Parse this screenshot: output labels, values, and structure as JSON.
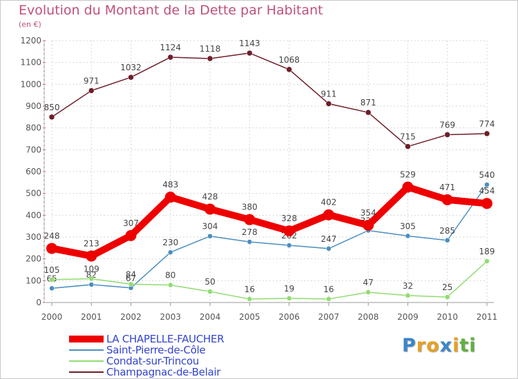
{
  "header": {
    "title": "Evolution du Montant de la Dette par Habitant",
    "subtitle": "(en €)"
  },
  "logo": {
    "letters": [
      "P",
      "r",
      "o",
      "x",
      "i",
      "t",
      "i"
    ],
    "colors": [
      "#3a86c8",
      "#e8a020",
      "#e8a020",
      "#3a86c8",
      "#e8a020",
      "#60b040",
      "#60b040"
    ]
  },
  "chart_data": {
    "type": "line",
    "x": [
      "2000",
      "2001",
      "2002",
      "2003",
      "2004",
      "2005",
      "2006",
      "2007",
      "2008",
      "2009",
      "2010",
      "2011"
    ],
    "ylim": [
      0,
      1200
    ],
    "yticks": [
      "0",
      "100",
      "200",
      "300",
      "400",
      "500",
      "600",
      "700",
      "800",
      "900",
      "1000",
      "1100",
      "1200"
    ],
    "grid": true,
    "legend_position": "bottom-left",
    "series": [
      {
        "name": "LA CHAPELLE-FAUCHER",
        "color": "#ee0000",
        "values": [
          248,
          213,
          307,
          483,
          428,
          380,
          328,
          402,
          354,
          529,
          471,
          454
        ]
      },
      {
        "name": "Saint-Pierre-de-Côle",
        "color": "#4a8ec0",
        "values": [
          65,
          82,
          67,
          230,
          304,
          278,
          262,
          247,
          330,
          305,
          285,
          540
        ],
        "labels": [
          "65",
          "82",
          "67",
          "230",
          "304",
          "278",
          "262",
          "247",
          "330",
          "305",
          "285",
          "540"
        ]
      },
      {
        "name": "Condat-sur-Trincou",
        "color": "#90dc70",
        "values": [
          105,
          109,
          84,
          80,
          50,
          16,
          19,
          16,
          47,
          32,
          25,
          189
        ]
      },
      {
        "name": "Champagnac-de-Belair",
        "color": "#6e1e28",
        "values": [
          850,
          971,
          1032,
          1124,
          1118,
          1143,
          1068,
          911,
          871,
          715,
          769,
          774
        ]
      }
    ]
  }
}
